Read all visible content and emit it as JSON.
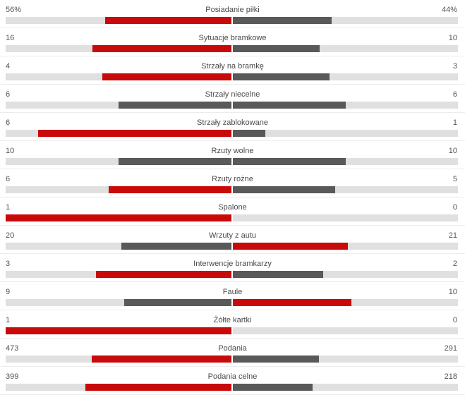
{
  "colors": {
    "leader": "#c80a0a",
    "trailer": "#595959",
    "track": "#e0e0e0"
  },
  "stats": [
    {
      "label": "Posiadanie piłki",
      "home": "56%",
      "away": "44%",
      "home_ratio": 0.56,
      "away_ratio": 0.44
    },
    {
      "label": "Sytuacje bramkowe",
      "home": "16",
      "away": "10",
      "home_ratio": 0.615,
      "away_ratio": 0.385
    },
    {
      "label": "Strzały na bramkę",
      "home": "4",
      "away": "3",
      "home_ratio": 0.571,
      "away_ratio": 0.429
    },
    {
      "label": "Strzały niecelne",
      "home": "6",
      "away": "6",
      "home_ratio": 0.5,
      "away_ratio": 0.5
    },
    {
      "label": "Strzały zablokowane",
      "home": "6",
      "away": "1",
      "home_ratio": 0.857,
      "away_ratio": 0.143
    },
    {
      "label": "Rzuty wolne",
      "home": "10",
      "away": "10",
      "home_ratio": 0.5,
      "away_ratio": 0.5
    },
    {
      "label": "Rzuty rożne",
      "home": "6",
      "away": "5",
      "home_ratio": 0.545,
      "away_ratio": 0.455
    },
    {
      "label": "Spalone",
      "home": "1",
      "away": "0",
      "home_ratio": 1.0,
      "away_ratio": 0.0
    },
    {
      "label": "Wrzuty z autu",
      "home": "20",
      "away": "21",
      "home_ratio": 0.488,
      "away_ratio": 0.512
    },
    {
      "label": "Interwencje bramkarzy",
      "home": "3",
      "away": "2",
      "home_ratio": 0.6,
      "away_ratio": 0.4
    },
    {
      "label": "Faule",
      "home": "9",
      "away": "10",
      "home_ratio": 0.474,
      "away_ratio": 0.526
    },
    {
      "label": "Żółte kartki",
      "home": "1",
      "away": "0",
      "home_ratio": 1.0,
      "away_ratio": 0.0
    },
    {
      "label": "Podania",
      "home": "473",
      "away": "291",
      "home_ratio": 0.619,
      "away_ratio": 0.381
    },
    {
      "label": "Podania celne",
      "home": "399",
      "away": "218",
      "home_ratio": 0.647,
      "away_ratio": 0.353
    }
  ]
}
